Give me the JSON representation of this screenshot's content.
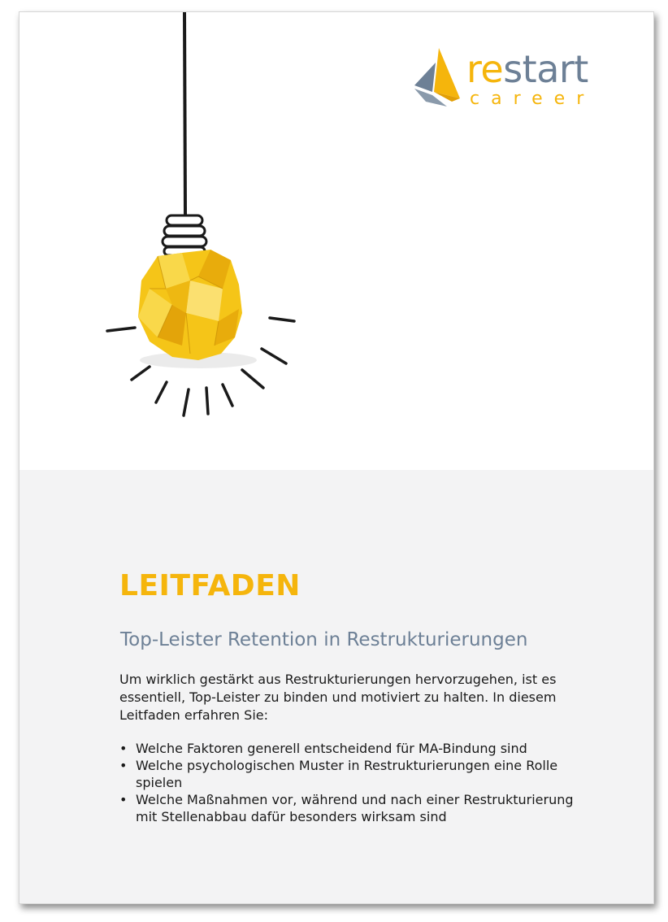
{
  "logo": {
    "word_re": "re",
    "word_start": "start",
    "word_career": "career"
  },
  "illustration": "crumpled-paper-lightbulb-icon",
  "document": {
    "title": "LEITFADEN",
    "subtitle": "Top-Leister Retention in Restrukturierungen",
    "intro": "Um wirklich gestärkt aus Restrukturierungen hervorzugehen, ist es essentiell, Top-Leister zu binden und motiviert zu halten. In diesem Leitfaden erfahren Sie:",
    "bullets": [
      "Welche Faktoren generell entscheidend für MA-Bindung sind",
      "Welche psychologischen Muster in Restrukturierungen eine Rolle spielen",
      "Welche Maßnahmen vor, während und nach einer Restrukturierung mit Stellenabbau dafür besonders wirksam sind"
    ]
  },
  "colors": {
    "accent_yellow": "#f5b50c",
    "accent_slate": "#6d8096",
    "panel_gray": "#f3f3f4"
  }
}
